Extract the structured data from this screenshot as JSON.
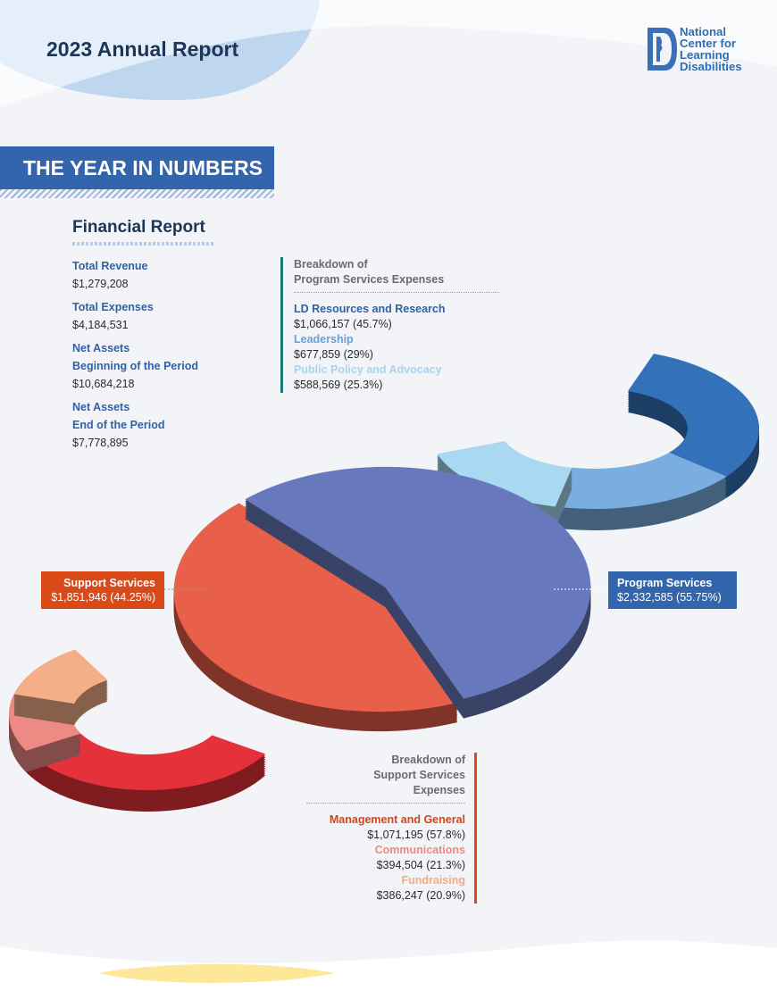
{
  "header": {
    "title": "2023 Annual Report"
  },
  "logo": {
    "lines": [
      "National",
      "Center for",
      "Learning",
      "Disabilities"
    ]
  },
  "banner": {
    "title": "THE YEAR IN NUMBERS"
  },
  "financial": {
    "title": "Financial Report",
    "items": [
      {
        "label": "Total Revenue",
        "value": "$1,279,208"
      },
      {
        "label": "Total Expenses",
        "value": "$4,184,531"
      },
      {
        "label": "Net Assets",
        "label2": "Beginning of the Period",
        "value": "$10,684,218"
      },
      {
        "label": "Net Assets",
        "label2": "End of the Period",
        "value": "$7,778,895"
      }
    ]
  },
  "program_breakdown": {
    "heading_line1": "Breakdown of",
    "heading_line2": "Program Services Expenses",
    "items": [
      {
        "label": "LD Resources and Research",
        "value": "$1,066,157 (45.7%)",
        "color": "#2f62a8"
      },
      {
        "label": "Leadership",
        "value": "$677,859 (29%)",
        "color": "#6a9fd6"
      },
      {
        "label": "Public Policy and Advocacy",
        "value": "$588,569 (25.3%)",
        "color": "#a8d4ee"
      }
    ]
  },
  "support_breakdown": {
    "heading_line1": "Breakdown of",
    "heading_line2": "Support Services",
    "heading_line3": "Expenses",
    "items": [
      {
        "label": "Management and General",
        "value": "$1,071,195 (57.8%)",
        "color": "#d3461b"
      },
      {
        "label": "Communications",
        "value": "$394,504 (21.3%)",
        "color": "#ec8a80"
      },
      {
        "label": "Fundraising",
        "value": "$386,247 (20.9%)",
        "color": "#f3ab85"
      }
    ]
  },
  "main_tags": {
    "support": {
      "label": "Support Services",
      "value": "$1,851,946 (44.25%)"
    },
    "program": {
      "label": "Program Services",
      "value": "$2,332,585 (55.75%)"
    }
  },
  "chart_data": [
    {
      "type": "pie",
      "categories": [
        "Support Services",
        "Program Services"
      ],
      "values": [
        1851946,
        2332585
      ],
      "colors": [
        "#e85f4a",
        "#6779bc"
      ]
    },
    {
      "type": "pie",
      "categories": [
        "LD Resources and Research",
        "Leadership",
        "Public Policy and Advocacy"
      ],
      "values": [
        1066157,
        677859,
        588569
      ],
      "colors": [
        "#3372b9",
        "#7aaee0",
        "#a8d9f1"
      ]
    },
    {
      "type": "pie",
      "categories": [
        "Management and General",
        "Communications",
        "Fundraising"
      ],
      "values": [
        1071195,
        394504,
        386247
      ],
      "colors": [
        "#e5323a",
        "#ee8a84",
        "#f4ae88"
      ]
    }
  ]
}
